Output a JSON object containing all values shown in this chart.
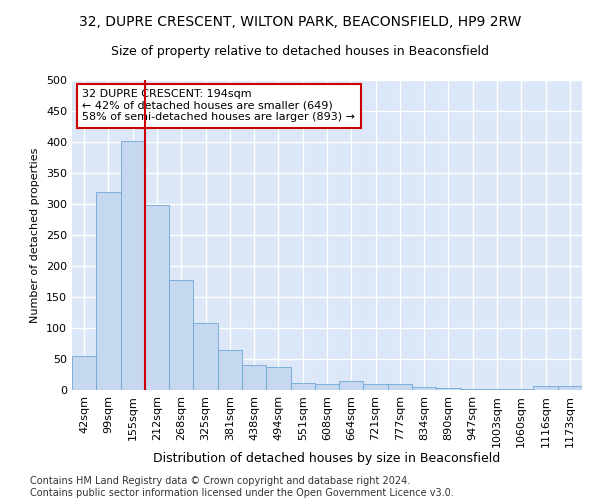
{
  "title": "32, DUPRE CRESCENT, WILTON PARK, BEACONSFIELD, HP9 2RW",
  "subtitle": "Size of property relative to detached houses in Beaconsfield",
  "xlabel": "Distribution of detached houses by size in Beaconsfield",
  "ylabel": "Number of detached properties",
  "categories": [
    "42sqm",
    "99sqm",
    "155sqm",
    "212sqm",
    "268sqm",
    "325sqm",
    "381sqm",
    "438sqm",
    "494sqm",
    "551sqm",
    "608sqm",
    "664sqm",
    "721sqm",
    "777sqm",
    "834sqm",
    "890sqm",
    "947sqm",
    "1003sqm",
    "1060sqm",
    "1116sqm",
    "1173sqm"
  ],
  "values": [
    55,
    320,
    401,
    298,
    177,
    108,
    65,
    40,
    37,
    12,
    10,
    15,
    10,
    9,
    5,
    4,
    2,
    1,
    1,
    6,
    6
  ],
  "bar_color": "#c5d8f0",
  "bar_edge_color": "#6fa8d6",
  "vline_index": 3,
  "vline_color": "#cc0000",
  "annotation_text": "32 DUPRE CRESCENT: 194sqm\n← 42% of detached houses are smaller (649)\n58% of semi-detached houses are larger (893) →",
  "annotation_box_color": "#ffffff",
  "annotation_box_edge": "#cc0000",
  "footnote": "Contains HM Land Registry data © Crown copyright and database right 2024.\nContains public sector information licensed under the Open Government Licence v3.0.",
  "ylim": [
    0,
    500
  ],
  "yticks": [
    0,
    50,
    100,
    150,
    200,
    250,
    300,
    350,
    400,
    450,
    500
  ],
  "background_color": "#dce8f8",
  "grid_color": "#ffffff",
  "fig_facecolor": "#ffffff",
  "title_fontsize": 10,
  "subtitle_fontsize": 9,
  "xlabel_fontsize": 9,
  "ylabel_fontsize": 8,
  "tick_fontsize": 8,
  "annotation_fontsize": 8,
  "footnote_fontsize": 7
}
